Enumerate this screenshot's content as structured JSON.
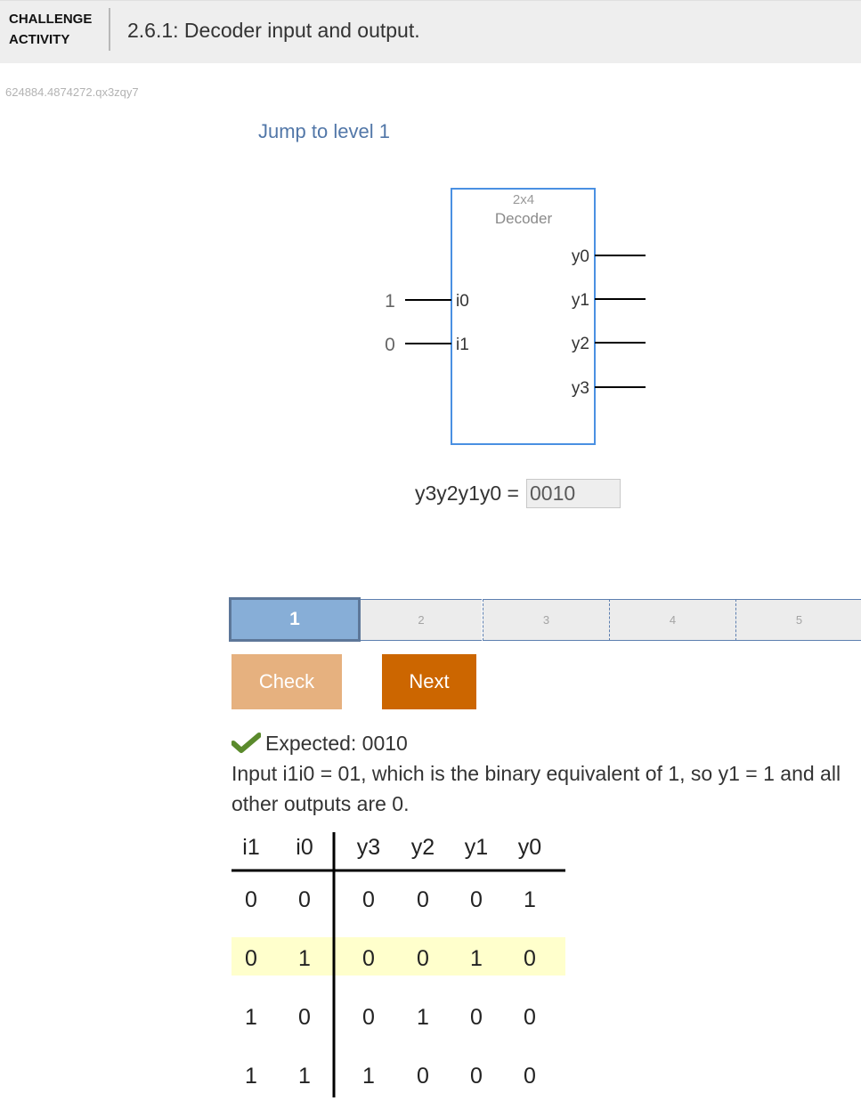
{
  "header": {
    "badge_line1": "CHALLENGE",
    "badge_line2": "ACTIVITY",
    "title": "2.6.1: Decoder input and output."
  },
  "activity_id": "624884.4874272.qx3zqy7",
  "jump_link": "Jump to level 1",
  "decoder": {
    "title_line1": "2x4",
    "title_line2": "Decoder",
    "inputs": [
      {
        "name": "i0",
        "value": "1"
      },
      {
        "name": "i1",
        "value": "0"
      }
    ],
    "outputs": [
      "y0",
      "y1",
      "y2",
      "y3"
    ]
  },
  "question": {
    "label": "y3y2y1y0 =",
    "answer_value": "0010"
  },
  "levels": [
    "1",
    "2",
    "3",
    "4",
    "5"
  ],
  "buttons": {
    "check": "Check",
    "next": "Next"
  },
  "feedback": {
    "expected": "Expected: 0010",
    "explanation": "Input i1i0 = 01, which is the binary equivalent of 1, so y1 = 1 and all other outputs are 0."
  },
  "truth_table": {
    "input_headers": [
      "i1",
      "i0"
    ],
    "output_headers": [
      "y3",
      "y2",
      "y1",
      "y0"
    ],
    "rows": [
      [
        "0",
        "0",
        "0",
        "0",
        "0",
        "1"
      ],
      [
        "0",
        "1",
        "0",
        "0",
        "1",
        "0"
      ],
      [
        "1",
        "0",
        "0",
        "1",
        "0",
        "0"
      ],
      [
        "1",
        "1",
        "1",
        "0",
        "0",
        "0"
      ]
    ],
    "highlighted_row": 1,
    "highlight_color": "#ffffcc"
  },
  "colors": {
    "decoder_border": "#4a90e2",
    "level_active": "#87aed7",
    "check_button": "#e6b17f",
    "next_button": "#cc6600",
    "check_icon": "#5a8a2c"
  }
}
